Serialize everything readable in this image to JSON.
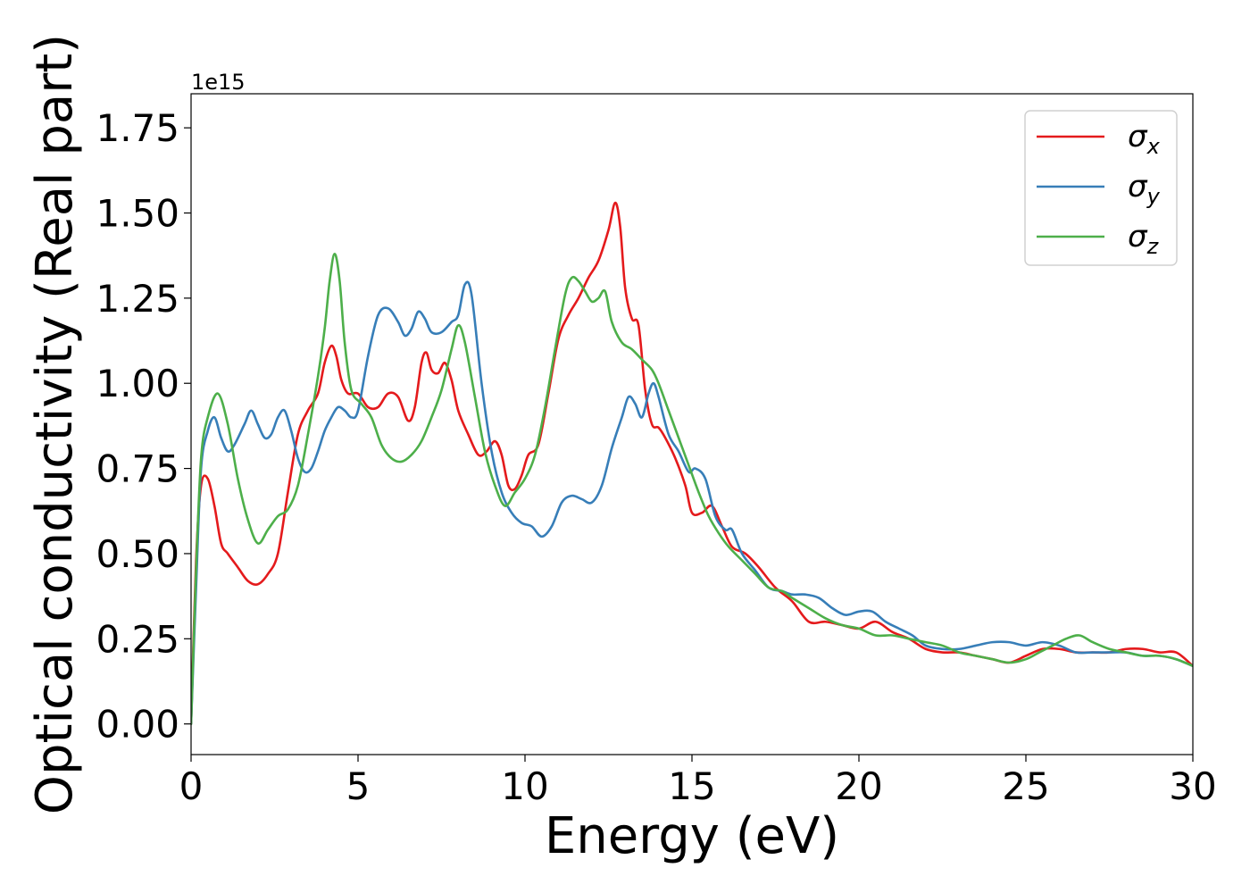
{
  "chart_data": {
    "type": "line",
    "xlabel": "Energy (eV)",
    "ylabel": "Optical conductivity (Real part)",
    "y_offset_text": "1e15",
    "y_scale": 1000000000000000.0,
    "xlim": [
      0,
      30
    ],
    "ylim": [
      -0.09,
      1.85
    ],
    "x_ticks": [
      0,
      5,
      10,
      15,
      20,
      25,
      30
    ],
    "x_tick_labels": [
      "0",
      "5",
      "10",
      "15",
      "20",
      "25",
      "30"
    ],
    "y_ticks": [
      0,
      0.25,
      0.5,
      0.75,
      1.0,
      1.25,
      1.5,
      1.75
    ],
    "y_tick_labels": [
      "0.00",
      "0.25",
      "0.50",
      "0.75",
      "1.00",
      "1.25",
      "1.50",
      "1.75"
    ],
    "grid": false,
    "legend_position": "top-right",
    "series": [
      {
        "name": "σx",
        "legend_symbol": "σ",
        "legend_subscript": "x",
        "color": "#e41a1c",
        "x": [
          0,
          0.15,
          0.3,
          0.5,
          0.7,
          0.9,
          1.1,
          1.4,
          1.7,
          2.0,
          2.3,
          2.6,
          2.9,
          3.2,
          3.5,
          3.8,
          4.0,
          4.2,
          4.35,
          4.5,
          4.7,
          5.0,
          5.3,
          5.6,
          5.9,
          6.2,
          6.5,
          6.7,
          6.9,
          7.05,
          7.2,
          7.4,
          7.6,
          7.8,
          8.0,
          8.3,
          8.6,
          8.85,
          9.1,
          9.3,
          9.5,
          9.7,
          9.9,
          10.1,
          10.4,
          10.7,
          11.0,
          11.3,
          11.6,
          11.9,
          12.2,
          12.5,
          12.7,
          12.85,
          13.0,
          13.2,
          13.4,
          13.6,
          13.8,
          14.0,
          14.2,
          14.5,
          14.8,
          15.0,
          15.3,
          15.6,
          15.9,
          16.2,
          16.6,
          17.0,
          17.5,
          18.0,
          18.5,
          19.0,
          19.5,
          20.0,
          20.5,
          21.0,
          21.5,
          22.0,
          22.5,
          23.0,
          23.5,
          24.0,
          24.5,
          25.0,
          25.5,
          26.0,
          26.5,
          27.0,
          27.5,
          28.0,
          28.5,
          29.0,
          29.5,
          30.0
        ],
        "y": [
          0.0,
          0.48,
          0.7,
          0.72,
          0.64,
          0.53,
          0.5,
          0.46,
          0.42,
          0.41,
          0.44,
          0.5,
          0.68,
          0.85,
          0.92,
          0.97,
          1.06,
          1.11,
          1.08,
          1.01,
          0.97,
          0.97,
          0.93,
          0.93,
          0.97,
          0.96,
          0.89,
          0.93,
          1.06,
          1.09,
          1.04,
          1.03,
          1.06,
          1.01,
          0.92,
          0.85,
          0.79,
          0.8,
          0.83,
          0.79,
          0.7,
          0.69,
          0.73,
          0.79,
          0.82,
          0.97,
          1.13,
          1.2,
          1.25,
          1.31,
          1.36,
          1.45,
          1.53,
          1.46,
          1.28,
          1.19,
          1.17,
          0.98,
          0.88,
          0.87,
          0.84,
          0.78,
          0.7,
          0.62,
          0.62,
          0.64,
          0.58,
          0.52,
          0.5,
          0.46,
          0.4,
          0.36,
          0.3,
          0.3,
          0.29,
          0.28,
          0.3,
          0.27,
          0.25,
          0.22,
          0.21,
          0.21,
          0.2,
          0.19,
          0.18,
          0.2,
          0.22,
          0.22,
          0.21,
          0.21,
          0.21,
          0.22,
          0.22,
          0.21,
          0.21,
          0.17
        ]
      },
      {
        "name": "σy",
        "legend_symbol": "σ",
        "legend_subscript": "y",
        "color": "#377eb8",
        "x": [
          0,
          0.15,
          0.3,
          0.5,
          0.7,
          0.9,
          1.1,
          1.3,
          1.6,
          1.8,
          2.0,
          2.2,
          2.4,
          2.6,
          2.8,
          3.0,
          3.2,
          3.4,
          3.6,
          3.8,
          4.0,
          4.2,
          4.4,
          4.6,
          4.8,
          5.0,
          5.3,
          5.6,
          5.9,
          6.2,
          6.4,
          6.6,
          6.8,
          7.0,
          7.2,
          7.5,
          7.8,
          8.0,
          8.2,
          8.4,
          8.7,
          9.0,
          9.3,
          9.6,
          9.9,
          10.2,
          10.5,
          10.8,
          11.1,
          11.4,
          11.7,
          12.0,
          12.3,
          12.6,
          12.9,
          13.1,
          13.3,
          13.5,
          13.7,
          13.85,
          14.0,
          14.3,
          14.6,
          14.9,
          15.1,
          15.4,
          15.7,
          16.0,
          16.2,
          16.5,
          16.9,
          17.3,
          17.7,
          18.0,
          18.4,
          18.8,
          19.2,
          19.6,
          20.0,
          20.4,
          20.8,
          21.2,
          21.6,
          22.0,
          22.5,
          23.0,
          23.5,
          24.0,
          24.5,
          25.0,
          25.5,
          26.0,
          26.5,
          27.0,
          27.5,
          28.0,
          28.5,
          29.0,
          29.5,
          30.0
        ],
        "y": [
          0.0,
          0.4,
          0.75,
          0.86,
          0.9,
          0.84,
          0.8,
          0.82,
          0.88,
          0.92,
          0.88,
          0.84,
          0.85,
          0.9,
          0.92,
          0.86,
          0.78,
          0.74,
          0.75,
          0.8,
          0.86,
          0.9,
          0.93,
          0.92,
          0.9,
          0.92,
          1.08,
          1.2,
          1.22,
          1.18,
          1.14,
          1.16,
          1.21,
          1.19,
          1.15,
          1.15,
          1.18,
          1.2,
          1.29,
          1.26,
          1.0,
          0.8,
          0.68,
          0.62,
          0.59,
          0.58,
          0.55,
          0.58,
          0.65,
          0.67,
          0.66,
          0.65,
          0.7,
          0.81,
          0.9,
          0.96,
          0.94,
          0.9,
          0.97,
          1.0,
          0.96,
          0.85,
          0.8,
          0.74,
          0.75,
          0.72,
          0.61,
          0.57,
          0.57,
          0.5,
          0.45,
          0.4,
          0.39,
          0.38,
          0.38,
          0.37,
          0.34,
          0.32,
          0.33,
          0.33,
          0.3,
          0.28,
          0.26,
          0.23,
          0.22,
          0.22,
          0.23,
          0.24,
          0.24,
          0.23,
          0.24,
          0.23,
          0.21,
          0.21,
          0.21,
          0.21,
          0.2,
          0.2,
          0.19,
          0.17
        ]
      },
      {
        "name": "σz",
        "legend_symbol": "σ",
        "legend_subscript": "z",
        "color": "#4daf4a",
        "x": [
          0,
          0.15,
          0.3,
          0.5,
          0.8,
          1.1,
          1.4,
          1.7,
          2.0,
          2.3,
          2.6,
          2.9,
          3.2,
          3.5,
          3.8,
          4.0,
          4.15,
          4.3,
          4.45,
          4.6,
          4.8,
          5.1,
          5.4,
          5.7,
          6.0,
          6.3,
          6.6,
          6.9,
          7.2,
          7.5,
          7.8,
          8.0,
          8.2,
          8.5,
          8.8,
          9.1,
          9.4,
          9.7,
          10.0,
          10.3,
          10.6,
          10.9,
          11.2,
          11.4,
          11.6,
          11.8,
          12.0,
          12.2,
          12.4,
          12.6,
          12.9,
          13.2,
          13.5,
          13.8,
          14.0,
          14.3,
          14.6,
          14.9,
          15.2,
          15.5,
          15.8,
          16.1,
          16.5,
          16.9,
          17.3,
          17.7,
          18.0,
          18.5,
          19.0,
          19.5,
          20.0,
          20.5,
          21.0,
          21.5,
          22.0,
          22.5,
          23.0,
          23.5,
          24.0,
          24.5,
          25.0,
          25.4,
          25.8,
          26.2,
          26.6,
          27.0,
          27.5,
          28.0,
          28.5,
          29.0,
          29.5,
          30.0
        ],
        "y": [
          0.0,
          0.45,
          0.78,
          0.9,
          0.97,
          0.88,
          0.72,
          0.6,
          0.53,
          0.57,
          0.61,
          0.63,
          0.7,
          0.85,
          1.02,
          1.16,
          1.3,
          1.38,
          1.3,
          1.12,
          0.98,
          0.94,
          0.9,
          0.82,
          0.78,
          0.77,
          0.79,
          0.83,
          0.9,
          0.98,
          1.1,
          1.17,
          1.12,
          0.96,
          0.8,
          0.7,
          0.64,
          0.68,
          0.72,
          0.79,
          0.93,
          1.1,
          1.26,
          1.31,
          1.3,
          1.27,
          1.24,
          1.25,
          1.27,
          1.18,
          1.12,
          1.1,
          1.07,
          1.04,
          1.0,
          0.92,
          0.84,
          0.76,
          0.68,
          0.61,
          0.56,
          0.52,
          0.48,
          0.44,
          0.4,
          0.39,
          0.37,
          0.34,
          0.31,
          0.29,
          0.28,
          0.26,
          0.26,
          0.25,
          0.24,
          0.23,
          0.21,
          0.2,
          0.19,
          0.18,
          0.19,
          0.21,
          0.23,
          0.25,
          0.26,
          0.24,
          0.22,
          0.21,
          0.2,
          0.2,
          0.19,
          0.17
        ]
      }
    ]
  }
}
